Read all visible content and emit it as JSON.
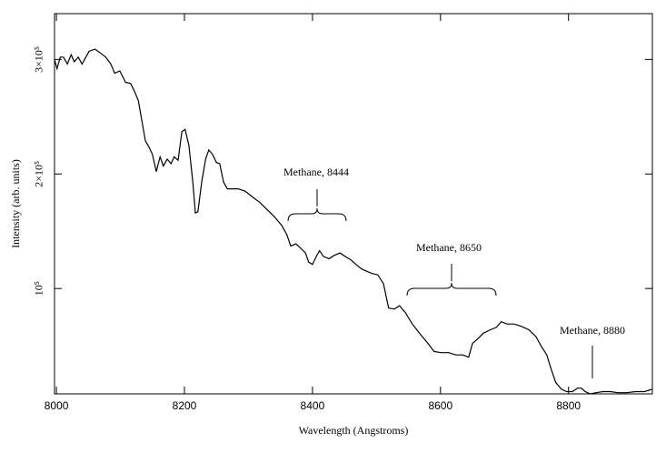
{
  "chart_data": {
    "type": "line",
    "xlabel": "Wavelength (Angstroms)",
    "ylabel": "Intensity (arb. units)",
    "xlim": [
      7997,
      8931
    ],
    "ylim": [
      8000,
      340000
    ],
    "xticks": [
      8000,
      8200,
      8400,
      8600,
      8800
    ],
    "yticks": [
      {
        "value": 100000,
        "label": "10⁵"
      },
      {
        "value": 200000,
        "label": "2×10⁵"
      },
      {
        "value": 300000,
        "label": "3×10⁵"
      }
    ],
    "annotations": [
      "Methane, 8444",
      "Methane, 8650",
      "Methane, 8880"
    ],
    "color": "#000000",
    "x": [
      7997,
      8001,
      8006,
      8011,
      8017,
      8023,
      8028,
      8034,
      8040,
      8045,
      8051,
      8060,
      8068,
      8077,
      8085,
      8091,
      8099,
      8108,
      8116,
      8122,
      8128,
      8133,
      8139,
      8145,
      8150,
      8156,
      8162,
      8167,
      8173,
      8179,
      8184,
      8190,
      8196,
      8201,
      8207,
      8213,
      8217,
      8221,
      8227,
      8233,
      8238,
      8244,
      8250,
      8255,
      8261,
      8267,
      8275,
      8284,
      8295,
      8306,
      8318,
      8329,
      8340,
      8352,
      8360,
      8366,
      8374,
      8380,
      8389,
      8394,
      8400,
      8406,
      8411,
      8417,
      8426,
      8434,
      8443,
      8451,
      8460,
      8468,
      8477,
      8485,
      8494,
      8502,
      8511,
      8519,
      8528,
      8536,
      8545,
      8556,
      8567,
      8579,
      8590,
      8601,
      8613,
      8624,
      8635,
      8644,
      8650,
      8658,
      8667,
      8678,
      8687,
      8695,
      8704,
      8715,
      8726,
      8738,
      8749,
      8757,
      8766,
      8772,
      8780,
      8789,
      8797,
      8806,
      8814,
      8820,
      8826,
      8834,
      8843,
      8854,
      8865,
      8877,
      8891,
      8905,
      8919,
      8930
    ],
    "values": [
      300000,
      292000,
      302000,
      302000,
      296000,
      304000,
      298000,
      302000,
      296000,
      301000,
      307000,
      309000,
      306000,
      302000,
      296000,
      288000,
      290000,
      280000,
      279000,
      272000,
      264000,
      248000,
      229000,
      223000,
      217000,
      202000,
      215000,
      207000,
      213000,
      209000,
      215000,
      212000,
      237000,
      239000,
      225000,
      193000,
      166000,
      167000,
      193000,
      213000,
      221000,
      217000,
      210000,
      209000,
      193000,
      187000,
      187000,
      187000,
      185000,
      180000,
      175000,
      169000,
      163000,
      155000,
      147000,
      137000,
      139000,
      136000,
      131000,
      123000,
      121000,
      128000,
      133000,
      128000,
      126000,
      129000,
      131000,
      128000,
      125000,
      121000,
      117000,
      115000,
      113000,
      112000,
      104000,
      83000,
      82000,
      85000,
      79000,
      69000,
      61000,
      53000,
      45000,
      44000,
      44000,
      42000,
      42000,
      40000,
      52000,
      56000,
      61000,
      64000,
      66000,
      71000,
      69000,
      69000,
      67000,
      64000,
      58000,
      50000,
      42000,
      31000,
      18000,
      12000,
      10000,
      10000,
      13000,
      13000,
      10000,
      8000,
      9000,
      10000,
      10000,
      9000,
      9000,
      10000,
      10000,
      12000
    ]
  }
}
